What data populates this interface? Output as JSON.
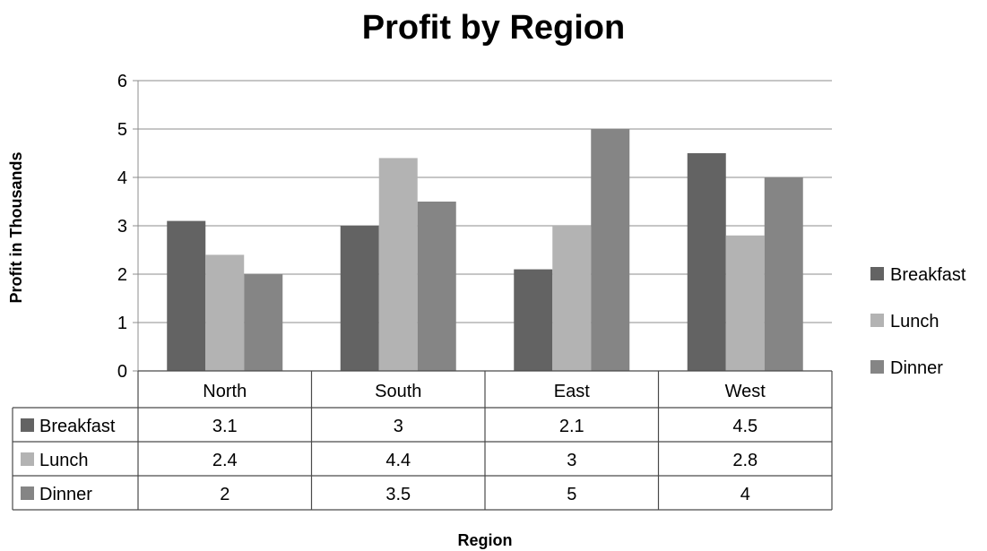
{
  "chart_data": {
    "type": "bar",
    "title": "Profit by Region",
    "xlabel": "Region",
    "ylabel": "Profit in Thousands",
    "categories": [
      "North",
      "South",
      "East",
      "West"
    ],
    "ylim": [
      0,
      6
    ],
    "yticks": [
      0,
      1,
      2,
      3,
      4,
      5,
      6
    ],
    "grid": true,
    "legend": "right",
    "data_table": true,
    "series": [
      {
        "name": "Breakfast",
        "values": [
          3.1,
          3,
          2.1,
          4.5
        ],
        "labels": [
          "3.1",
          "3",
          "2.1",
          "4.5"
        ],
        "color": "#636363"
      },
      {
        "name": "Lunch",
        "values": [
          2.4,
          4.4,
          3,
          2.8
        ],
        "labels": [
          "2.4",
          "4.4",
          "3",
          "2.8"
        ],
        "color": "#b3b3b3"
      },
      {
        "name": "Dinner",
        "values": [
          2,
          3.5,
          5,
          4
        ],
        "labels": [
          "2",
          "3.5",
          "5",
          "4"
        ],
        "color": "#858585"
      }
    ]
  }
}
